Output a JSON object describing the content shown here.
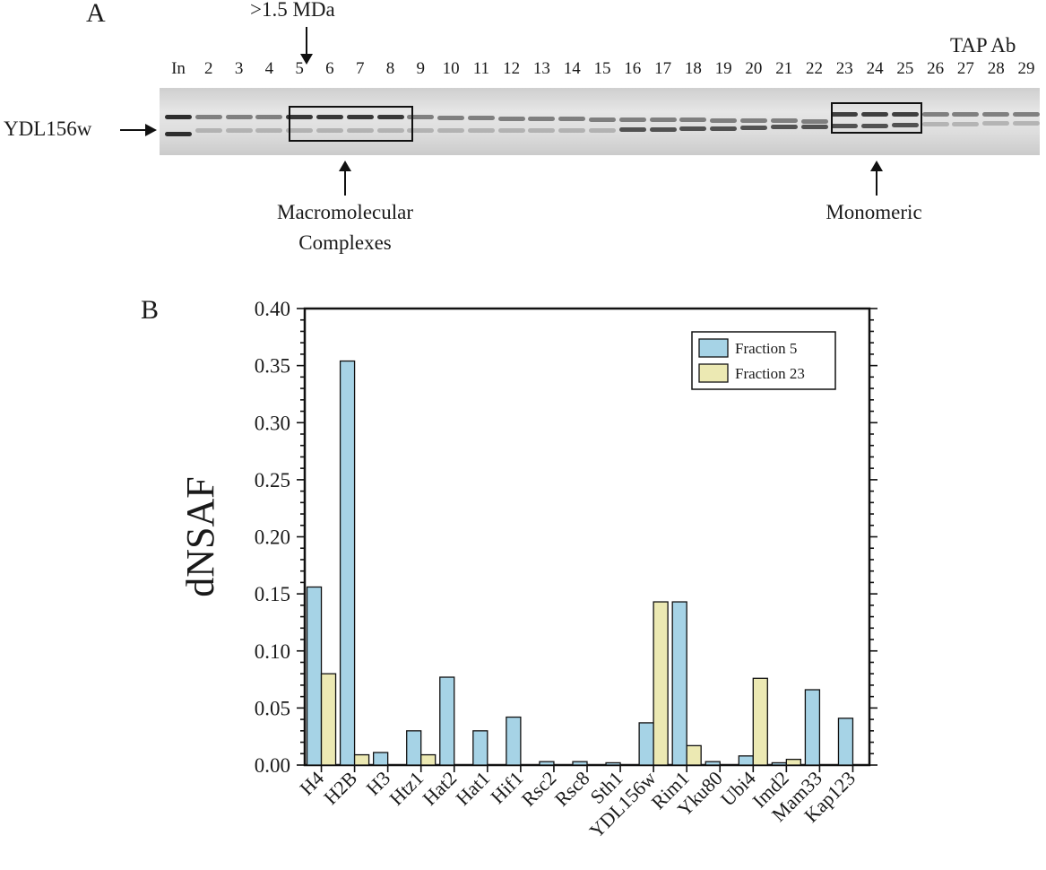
{
  "panel_a": {
    "letter": "A",
    "size_marker": ">1.5 MDa",
    "antibody_label": "TAP Ab",
    "protein_label": "YDL156w",
    "lanes": [
      "In",
      "2",
      "3",
      "4",
      "5",
      "6",
      "7",
      "8",
      "9",
      "10",
      "11",
      "12",
      "13",
      "14",
      "15",
      "16",
      "17",
      "18",
      "19",
      "20",
      "21",
      "22",
      "23",
      "24",
      "25",
      "26",
      "27",
      "28",
      "29"
    ],
    "annotation_left_line1": "Macromolecular",
    "annotation_left_line2": "Complexes",
    "annotation_right": "Monomeric"
  },
  "panel_b": {
    "letter": "B"
  },
  "chart_data": {
    "type": "bar",
    "title": "",
    "xlabel": "",
    "ylabel": "dNSAF",
    "ylim": [
      0,
      0.4
    ],
    "yticks": [
      "0.00",
      "0.05",
      "0.10",
      "0.15",
      "0.20",
      "0.25",
      "0.30",
      "0.35",
      "0.40"
    ],
    "categories": [
      "H4",
      "H2B",
      "H3",
      "Htz1",
      "Hat2",
      "Hat1",
      "Hif1",
      "Rsc2",
      "Rsc8",
      "Sth1",
      "YDL156w",
      "Rim1",
      "Yku80",
      "Ubi4",
      "Imd2",
      "Mam33",
      "Kap123"
    ],
    "series": [
      {
        "name": "Fraction 5",
        "color": "#a6d3e6",
        "values": [
          0.156,
          0.354,
          0.011,
          0.03,
          0.077,
          0.03,
          0.042,
          0.003,
          0.003,
          0.002,
          0.037,
          0.143,
          0.003,
          0.008,
          0.002,
          0.066,
          0.041
        ]
      },
      {
        "name": "Fraction 23",
        "color": "#ece9b3",
        "values": [
          0.08,
          0.009,
          0.0,
          0.009,
          0.0,
          0.0,
          0.0,
          0.0,
          0.0,
          0.0,
          0.143,
          0.017,
          0.0,
          0.076,
          0.005,
          0.0,
          0.0
        ]
      }
    ],
    "legend_position": "top-right",
    "grid": false
  }
}
